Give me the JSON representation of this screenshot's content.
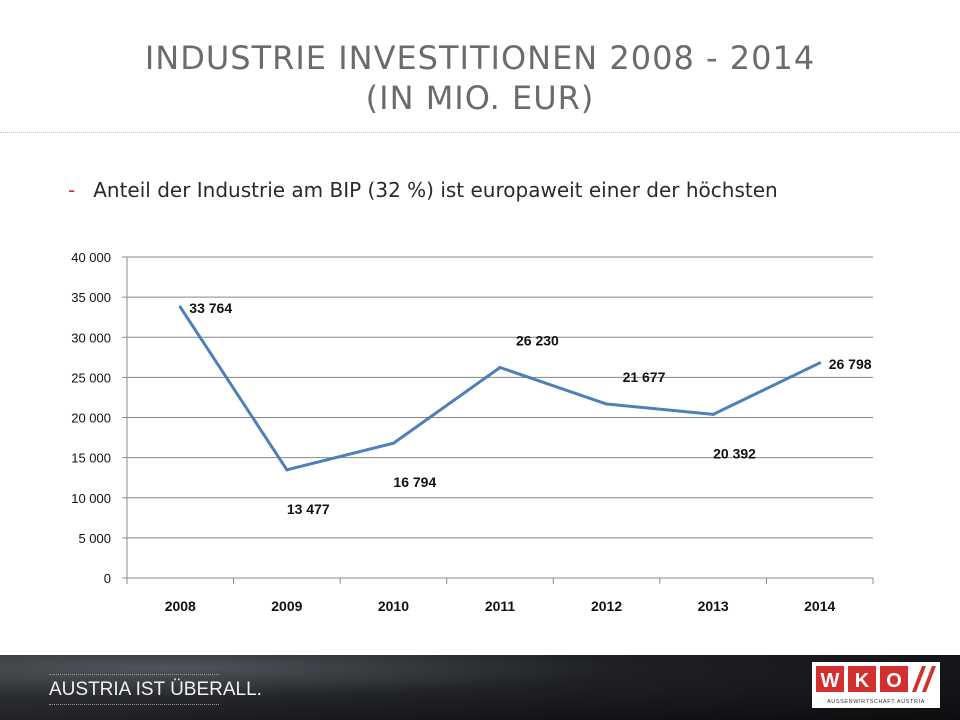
{
  "slide": {
    "title_line1": "INDUSTRIE INVESTITIONEN 2008 - 2014",
    "title_line2": "(IN MIO. EUR)",
    "bullet_marker": "-",
    "bullet_text": "Anteil der Industrie am BIP (32 %) ist europaweit einer der höchsten"
  },
  "footer": {
    "slogan": "AUSTRIA IST ÜBERALL.",
    "logo_letters": [
      "W",
      "K",
      "O"
    ],
    "logo_subtitle": "AUSSENWIRTSCHAFT AUSTRIA",
    "colors": {
      "logo_red": "#d2302f",
      "background": "#16181b"
    }
  },
  "chart_data": {
    "type": "line",
    "categories": [
      "2008",
      "2009",
      "2010",
      "2011",
      "2012",
      "2013",
      "2014"
    ],
    "series": [
      {
        "values": [
          33764,
          13477,
          16794,
          26230,
          21677,
          20392,
          26798
        ],
        "color": "#4f7fb8"
      }
    ],
    "data_labels": [
      "33 764",
      "13 477",
      "16 794",
      "26 230",
      "21 677",
      "20 392",
      "26 798"
    ],
    "label_positions": [
      "right",
      "below",
      "below",
      "above",
      "above",
      "below",
      "right"
    ],
    "y_ticks": [
      0,
      5000,
      10000,
      15000,
      20000,
      25000,
      30000,
      35000,
      40000
    ],
    "y_tick_labels": [
      "0",
      "5 000",
      "10 000",
      "15 000",
      "20 000",
      "25 000",
      "30 000",
      "35 000",
      "40 000"
    ],
    "ylim": [
      0,
      40000
    ],
    "grid": true,
    "legend": "none"
  }
}
